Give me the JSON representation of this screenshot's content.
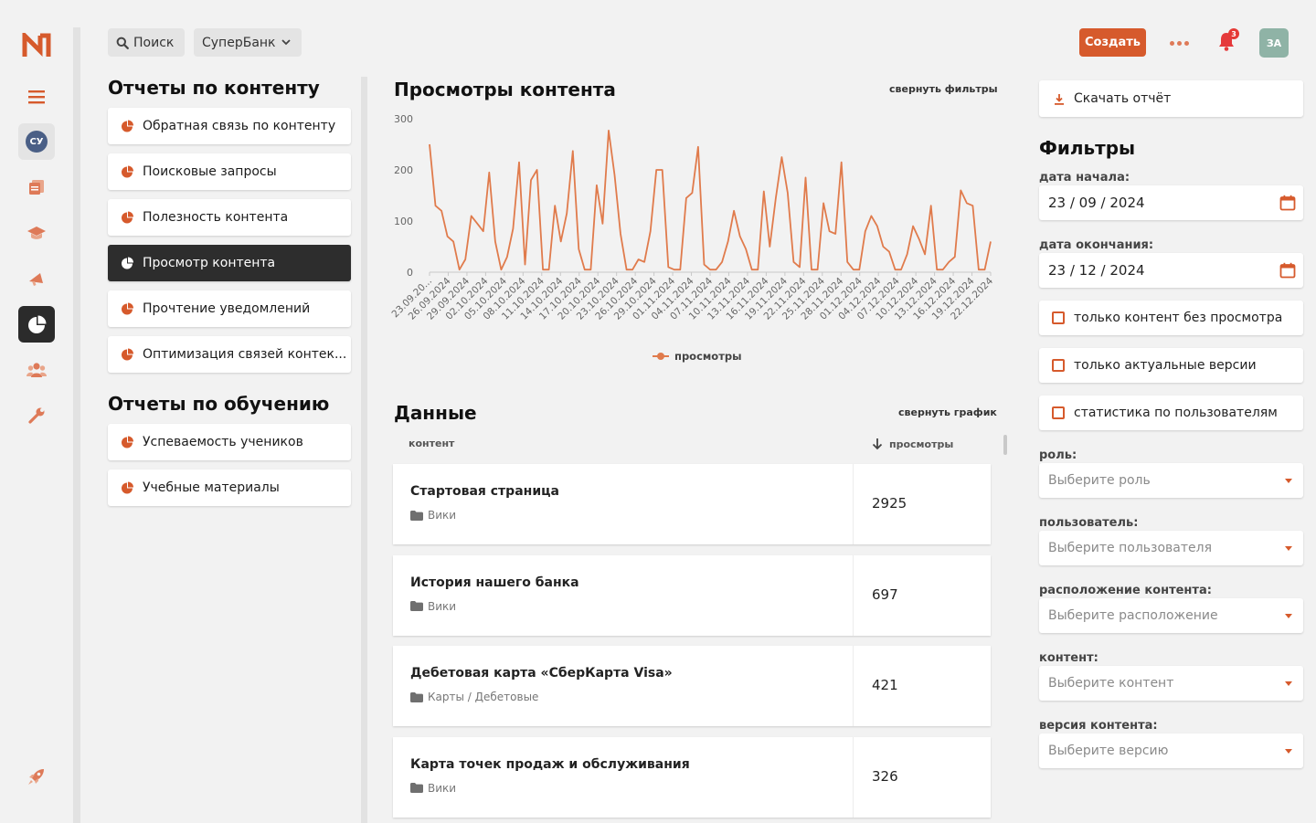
{
  "colors": {
    "accent": "#d65a2c",
    "dark": "#2d2d2d",
    "chart_line": "#e07b4c"
  },
  "topbar": {
    "search_label": "Поиск",
    "org_label": "СуперБанк",
    "create_label": "Создать",
    "notifications_count": "3",
    "user_initials": "ЗА"
  },
  "rail": {
    "workspace_initials": "СУ"
  },
  "content_reports": {
    "title": "Отчеты по контенту",
    "items": [
      {
        "label": "Обратная связь по контенту"
      },
      {
        "label": "Поисковые запросы"
      },
      {
        "label": "Полезность контента"
      },
      {
        "label": "Просмотр контента",
        "active": true
      },
      {
        "label": "Прочтение уведомлений"
      },
      {
        "label": "Оптимизация связей контек..."
      }
    ]
  },
  "learning_reports": {
    "title": "Отчеты по обучению",
    "items": [
      {
        "label": "Успеваемость учеников"
      },
      {
        "label": "Учебные материалы"
      }
    ]
  },
  "chart_section": {
    "title": "Просмотры контента",
    "collapse_filters": "свернуть фильтры"
  },
  "chart_data": {
    "type": "line",
    "title": "Просмотры контента",
    "xlabel": "",
    "ylabel": "",
    "ylim": [
      0,
      300
    ],
    "yticks": [
      "0",
      "100",
      "200",
      "300"
    ],
    "x_tick_labels": [
      "23.09.20...",
      "26.09.2024",
      "29.09.2024",
      "02.10.2024",
      "05.10.2024",
      "08.10.2024",
      "11.10.2024",
      "14.10.2024",
      "17.10.2024",
      "20.10.2024",
      "23.10.2024",
      "26.10.2024",
      "29.10.2024",
      "01.11.2024",
      "04.11.2024",
      "07.11.2024",
      "10.11.2024",
      "13.11.2024",
      "16.11.2024",
      "19.11.2024",
      "22.11.2024",
      "25.11.2024",
      "28.11.2024",
      "01.12.2024",
      "04.12.2024",
      "07.12.2024",
      "10.12.2024",
      "13.12.2024",
      "16.12.2024",
      "19.12.2024",
      "22.12.2024"
    ],
    "grid": false,
    "legend_position": "bottom-center",
    "series": [
      {
        "name": "просмотры",
        "values": [
          250,
          130,
          120,
          70,
          60,
          5,
          25,
          110,
          95,
          80,
          195,
          60,
          5,
          30,
          85,
          215,
          15,
          180,
          200,
          5,
          5,
          130,
          60,
          115,
          237,
          45,
          5,
          5,
          170,
          95,
          277,
          190,
          75,
          5,
          5,
          25,
          20,
          80,
          200,
          200,
          10,
          5,
          5,
          145,
          155,
          245,
          15,
          5,
          5,
          20,
          60,
          120,
          70,
          45,
          5,
          5,
          158,
          50,
          145,
          225,
          155,
          20,
          10,
          185,
          5,
          5,
          135,
          80,
          75,
          215,
          20,
          5,
          5,
          80,
          110,
          90,
          50,
          40,
          5,
          5,
          35,
          90,
          65,
          35,
          130,
          5,
          5,
          20,
          30,
          160,
          135,
          130,
          5,
          5,
          60
        ]
      }
    ]
  },
  "data_section": {
    "title": "Данные",
    "collapse_chart": "свернуть график",
    "columns": {
      "content": "контент",
      "views": "просмотры"
    },
    "rows": [
      {
        "title": "Стартовая страница",
        "path": "Вики",
        "views": "2925"
      },
      {
        "title": "История нашего банка",
        "path": "Вики",
        "views": "697"
      },
      {
        "title": "Дебетовая карта «СберКарта Visa»",
        "path": "Карты / Дебетовые",
        "views": "421"
      },
      {
        "title": "Карта точек продаж и обслуживания",
        "path": "Вики",
        "views": "326"
      }
    ]
  },
  "filters": {
    "download_label": "Скачать отчёт",
    "title": "Фильтры",
    "start_label": "дата начала:",
    "start_value": "23 / 09 / 2024",
    "end_label": "дата окончания:",
    "end_value": "23 / 12 / 2024",
    "checks": [
      {
        "label": "только контент без просмотра",
        "checked": false
      },
      {
        "label": "только актуальные версии",
        "checked": false
      },
      {
        "label": "статистика по пользователям",
        "checked": false
      }
    ],
    "role": {
      "label": "роль:",
      "placeholder": "Выберите роль"
    },
    "user": {
      "label": "пользователь:",
      "placeholder": "Выберите пользователя"
    },
    "location": {
      "label": "расположение контента:",
      "placeholder": "Выберите расположение"
    },
    "content": {
      "label": "контент:",
      "placeholder": "Выберите контент"
    },
    "version": {
      "label": "версия контента:",
      "placeholder": "Выберите версию"
    }
  }
}
